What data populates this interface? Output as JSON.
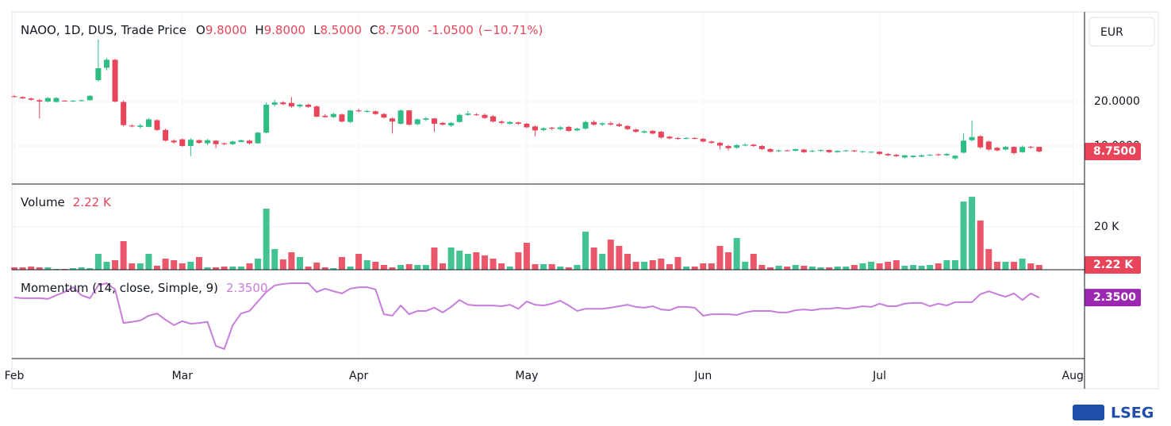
{
  "chart_data": [
    {
      "type": "candlestick",
      "title": "NAOO, 1D, DUS, Trade Price",
      "ohlc": {
        "labels": [
          "O",
          "H",
          "L",
          "C"
        ],
        "values": [
          9.8,
          9.8,
          8.5,
          8.75
        ],
        "value_labels": [
          "9.8000",
          "9.8000",
          "8.5000",
          "8.7500"
        ]
      },
      "change": {
        "value": -1.05,
        "label": "-1.0500"
      },
      "change_percent": {
        "value": -10.71,
        "label": "(−10.71%)"
      },
      "currency": "EUR",
      "last_value": {
        "value": 8.75,
        "label": "8.7500"
      },
      "up_color": "#2ebd85",
      "down_color": "#e8455a",
      "xlim": [
        0,
        127.4
      ],
      "xticks": [
        {
          "value": 0,
          "label": "Feb"
        },
        {
          "value": 20,
          "label": "Mar"
        },
        {
          "value": 41,
          "label": "Apr"
        },
        {
          "value": 61,
          "label": "May"
        },
        {
          "value": 82,
          "label": "Jun"
        },
        {
          "value": 103,
          "label": "Jul"
        },
        {
          "value": 126,
          "label": "Aug"
        }
      ],
      "ylim": [
        1.43,
        40.18
      ],
      "yticks": [
        {
          "value": 10,
          "label": "10.0000"
        },
        {
          "value": 20,
          "label": "20.0000"
        }
      ],
      "grid": true,
      "candles": [
        [
          21.2,
          21.5,
          20.9,
          21.1
        ],
        [
          21.0,
          21.2,
          20.6,
          20.7
        ],
        [
          20.7,
          20.9,
          20.2,
          20.4
        ],
        [
          20.3,
          20.6,
          16.2,
          20.0
        ],
        [
          20.0,
          21.0,
          19.8,
          20.8
        ],
        [
          19.9,
          21.0,
          19.8,
          20.8
        ],
        [
          20.2,
          20.3,
          20.0,
          20.1
        ],
        [
          20.1,
          20.3,
          19.9,
          20.2
        ],
        [
          20.2,
          20.4,
          20.0,
          20.3
        ],
        [
          20.3,
          21.4,
          20.2,
          21.3
        ],
        [
          24.8,
          34.0,
          24.5,
          27.5
        ],
        [
          27.6,
          29.8,
          27.0,
          29.4
        ],
        [
          29.4,
          29.6,
          19.8,
          20.0
        ],
        [
          19.9,
          20.3,
          14.4,
          14.7
        ],
        [
          14.6,
          14.9,
          14.2,
          14.4
        ],
        [
          14.3,
          15.0,
          13.9,
          14.6
        ],
        [
          14.3,
          16.3,
          14.2,
          16.0
        ],
        [
          15.8,
          16.0,
          13.4,
          13.6
        ],
        [
          13.6,
          13.9,
          11.0,
          11.2
        ],
        [
          11.2,
          11.5,
          10.5,
          10.8
        ],
        [
          11.5,
          11.7,
          9.8,
          10.0
        ],
        [
          10.0,
          11.8,
          7.7,
          11.4
        ],
        [
          11.3,
          11.5,
          10.5,
          10.7
        ],
        [
          10.6,
          11.6,
          10.2,
          11.3
        ],
        [
          11.2,
          11.3,
          9.5,
          10.4
        ],
        [
          10.6,
          10.8,
          10.2,
          10.4
        ],
        [
          10.4,
          11.2,
          10.2,
          11.0
        ],
        [
          10.9,
          11.5,
          10.8,
          11.3
        ],
        [
          11.2,
          11.4,
          10.3,
          10.6
        ],
        [
          10.6,
          13.2,
          10.5,
          13.0
        ],
        [
          13.0,
          19.8,
          12.8,
          19.3
        ],
        [
          19.3,
          20.4,
          18.9,
          19.8
        ],
        [
          19.8,
          20.1,
          19.2,
          19.4
        ],
        [
          19.7,
          21.0,
          18.6,
          18.9
        ],
        [
          18.9,
          19.5,
          18.5,
          19.3
        ],
        [
          19.3,
          19.5,
          18.6,
          18.8
        ],
        [
          18.9,
          19.1,
          16.5,
          16.6
        ],
        [
          16.8,
          17.2,
          16.3,
          16.5
        ],
        [
          16.5,
          17.5,
          16.3,
          17.2
        ],
        [
          17.1,
          17.3,
          15.3,
          15.5
        ],
        [
          15.4,
          18.1,
          15.2,
          18.0
        ],
        [
          18.0,
          18.4,
          17.6,
          17.8
        ],
        [
          17.7,
          18.1,
          17.5,
          17.9
        ],
        [
          17.8,
          18.0,
          17.0,
          17.2
        ],
        [
          17.2,
          17.4,
          16.2,
          16.4
        ],
        [
          16.2,
          16.4,
          12.8,
          15.5
        ],
        [
          15.0,
          18.2,
          14.8,
          18.0
        ],
        [
          18.0,
          18.1,
          14.6,
          14.8
        ],
        [
          14.9,
          16.2,
          14.7,
          16.0
        ],
        [
          15.9,
          16.5,
          15.6,
          16.2
        ],
        [
          16.2,
          16.3,
          13.2,
          15.0
        ],
        [
          15.2,
          15.4,
          14.6,
          14.8
        ],
        [
          14.6,
          15.4,
          14.3,
          15.2
        ],
        [
          15.4,
          17.3,
          15.2,
          17.0
        ],
        [
          17.0,
          17.9,
          16.8,
          17.3
        ],
        [
          17.1,
          17.4,
          16.8,
          17.0
        ],
        [
          17.0,
          17.3,
          16.1,
          16.3
        ],
        [
          16.7,
          16.9,
          15.3,
          15.5
        ],
        [
          15.5,
          15.8,
          14.9,
          15.2
        ],
        [
          15.0,
          15.6,
          14.8,
          15.4
        ],
        [
          15.3,
          15.5,
          14.7,
          15.0
        ],
        [
          15.0,
          15.2,
          14.0,
          14.2
        ],
        [
          14.4,
          14.6,
          12.2,
          13.5
        ],
        [
          13.6,
          14.2,
          13.3,
          14.0
        ],
        [
          14.1,
          14.3,
          13.6,
          13.9
        ],
        [
          13.8,
          14.5,
          13.5,
          14.2
        ],
        [
          14.3,
          14.5,
          13.2,
          13.4
        ],
        [
          13.5,
          14.1,
          13.3,
          13.9
        ],
        [
          13.9,
          15.7,
          13.7,
          15.4
        ],
        [
          15.4,
          15.8,
          14.6,
          14.8
        ],
        [
          14.8,
          15.3,
          14.5,
          15.1
        ],
        [
          15.1,
          15.5,
          14.6,
          14.8
        ],
        [
          14.9,
          15.2,
          14.3,
          14.5
        ],
        [
          14.5,
          14.7,
          13.6,
          13.8
        ],
        [
          13.7,
          13.9,
          13.0,
          13.2
        ],
        [
          13.0,
          13.6,
          12.8,
          13.3
        ],
        [
          13.4,
          13.6,
          12.6,
          12.8
        ],
        [
          13.2,
          13.4,
          11.6,
          11.9
        ],
        [
          12.1,
          12.3,
          11.5,
          11.7
        ],
        [
          11.8,
          12.0,
          11.4,
          11.6
        ],
        [
          11.6,
          12.0,
          11.5,
          11.8
        ],
        [
          11.8,
          12.0,
          11.5,
          11.6
        ],
        [
          11.6,
          11.8,
          10.8,
          11.0
        ],
        [
          11.0,
          11.2,
          10.5,
          10.7
        ],
        [
          10.7,
          10.9,
          9.2,
          10.1
        ],
        [
          10.0,
          10.3,
          9.0,
          9.5
        ],
        [
          9.6,
          10.4,
          9.4,
          10.2
        ],
        [
          10.1,
          10.6,
          9.9,
          10.3
        ],
        [
          10.3,
          10.5,
          9.8,
          10.0
        ],
        [
          10.0,
          10.2,
          9.1,
          9.3
        ],
        [
          9.3,
          9.5,
          8.5,
          8.7
        ],
        [
          8.8,
          9.2,
          8.6,
          9.0
        ],
        [
          9.0,
          9.2,
          8.8,
          8.9
        ],
        [
          8.9,
          9.4,
          8.8,
          9.3
        ],
        [
          9.2,
          9.3,
          8.4,
          8.6
        ],
        [
          8.8,
          9.2,
          8.6,
          8.9
        ],
        [
          8.9,
          9.2,
          8.7,
          9.1
        ],
        [
          9.1,
          9.2,
          8.4,
          8.6
        ],
        [
          8.6,
          9.0,
          8.5,
          8.9
        ],
        [
          8.9,
          9.1,
          8.7,
          9.0
        ],
        [
          9.0,
          9.1,
          8.6,
          8.8
        ],
        [
          8.7,
          8.9,
          8.5,
          8.8
        ],
        [
          8.6,
          8.8,
          8.4,
          8.7
        ],
        [
          8.7,
          8.8,
          8.0,
          8.2
        ],
        [
          8.2,
          8.4,
          7.7,
          7.9
        ],
        [
          8.0,
          8.2,
          7.5,
          7.7
        ],
        [
          7.4,
          8.0,
          7.2,
          7.9
        ],
        [
          7.5,
          7.9,
          7.3,
          7.8
        ],
        [
          7.6,
          8.1,
          7.5,
          7.9
        ],
        [
          7.9,
          8.2,
          7.7,
          8.0
        ],
        [
          8.1,
          8.3,
          7.8,
          8.0
        ],
        [
          7.9,
          8.4,
          7.7,
          8.2
        ],
        [
          7.2,
          8.0,
          6.9,
          7.8
        ],
        [
          8.5,
          12.8,
          8.3,
          11.2
        ],
        [
          11.3,
          15.7,
          11.0,
          12.0
        ],
        [
          12.2,
          12.4,
          9.4,
          9.7
        ],
        [
          11.0,
          11.2,
          8.9,
          9.2
        ],
        [
          9.6,
          9.8,
          8.8,
          9.0
        ],
        [
          9.2,
          10.0,
          9.0,
          9.8
        ],
        [
          9.8,
          9.9,
          8.1,
          8.4
        ],
        [
          8.6,
          10.1,
          8.5,
          9.8
        ],
        [
          9.8,
          10.0,
          9.4,
          9.7
        ],
        [
          9.8,
          9.8,
          8.5,
          8.75
        ]
      ]
    },
    {
      "type": "bar",
      "title": "Volume",
      "last_value": {
        "value": 2220,
        "label": "2.22 K"
      },
      "ylim": [
        0,
        40000
      ],
      "yticks": [
        {
          "value": 20000,
          "label": "20 K"
        }
      ],
      "grid": true,
      "values": [
        1110,
        1110,
        1480,
        1110,
        1110,
        370,
        370,
        740,
        1110,
        740,
        7400,
        3700,
        4440,
        13320,
        2960,
        2960,
        7400,
        1850,
        5180,
        4440,
        2960,
        3700,
        5920,
        1110,
        1110,
        1480,
        1480,
        1480,
        2960,
        5180,
        28490,
        9620,
        4810,
        8140,
        5920,
        1480,
        3330,
        1110,
        740,
        5920,
        1480,
        7400,
        4440,
        3700,
        2220,
        1110,
        2220,
        2590,
        2220,
        2220,
        10360,
        2960,
        10360,
        8880,
        7400,
        8140,
        6660,
        5180,
        2960,
        1480,
        8140,
        12580,
        2590,
        2590,
        2590,
        1480,
        1110,
        2220,
        17760,
        10360,
        7400,
        14060,
        11100,
        7400,
        3700,
        3700,
        4440,
        5180,
        2590,
        5920,
        1480,
        1480,
        2960,
        2960,
        11100,
        8140,
        14800,
        3700,
        7400,
        2220,
        1110,
        1850,
        1480,
        2220,
        1850,
        1480,
        1110,
        1110,
        1480,
        1480,
        2220,
        2960,
        3700,
        2960,
        3700,
        4440,
        1850,
        2220,
        1850,
        2220,
        2960,
        4440,
        4440,
        31820,
        34040,
        22940,
        9620,
        3700,
        3700,
        3700,
        5180,
        2960,
        2220
      ]
    },
    {
      "type": "line",
      "title": "Momentum (14, close, Simple, 9)",
      "last_value": {
        "value": 2.35,
        "label": "2.3500"
      },
      "color": "#c77ddb",
      "tag_color": "#9c27b0",
      "ylim": [
        -14.35,
        10
      ],
      "values": [
        2.4,
        2.2,
        2.2,
        2.2,
        2.0,
        3.0,
        3.9,
        5.2,
        3.0,
        2.2,
        5.7,
        6.3,
        4.6,
        -4.6,
        -4.3,
        -3.9,
        -2.6,
        -2.0,
        -3.7,
        -5.2,
        -4.1,
        -4.8,
        -4.6,
        -4.3,
        -10.9,
        -11.7,
        -5.2,
        -2.0,
        -1.3,
        1.3,
        3.9,
        5.7,
        6.1,
        6.3,
        6.3,
        6.3,
        3.9,
        4.8,
        4.1,
        3.5,
        4.8,
        5.2,
        5.2,
        4.6,
        -2.2,
        -2.6,
        0.2,
        -2.2,
        -1.3,
        -1.3,
        -0.4,
        -1.7,
        -0.2,
        1.7,
        0.4,
        0.2,
        0.2,
        0.2,
        0,
        0.4,
        -0.7,
        1.3,
        0.4,
        0.2,
        0.7,
        1.5,
        0.2,
        -1.3,
        -0.7,
        -0.7,
        -0.7,
        -0.4,
        0,
        0.4,
        -0.2,
        -0.4,
        0,
        -0.9,
        -1.1,
        -0.2,
        -0.2,
        -0.4,
        -2.6,
        -2.2,
        -2.2,
        -2.2,
        -2.4,
        -1.7,
        -1.3,
        -1.3,
        -1.3,
        -1.7,
        -1.7,
        -1.1,
        -0.9,
        -1.1,
        -0.7,
        -0.7,
        -0.4,
        -0.7,
        -0.4,
        0,
        -0.2,
        0.7,
        0,
        0,
        0.7,
        0.9,
        0.9,
        0,
        0.7,
        0.2,
        1.1,
        1.1,
        1.1,
        3.3,
        4.1,
        3.3,
        2.6,
        3.5,
        1.7,
        3.5,
        2.35
      ]
    }
  ],
  "brand": "LSEG"
}
